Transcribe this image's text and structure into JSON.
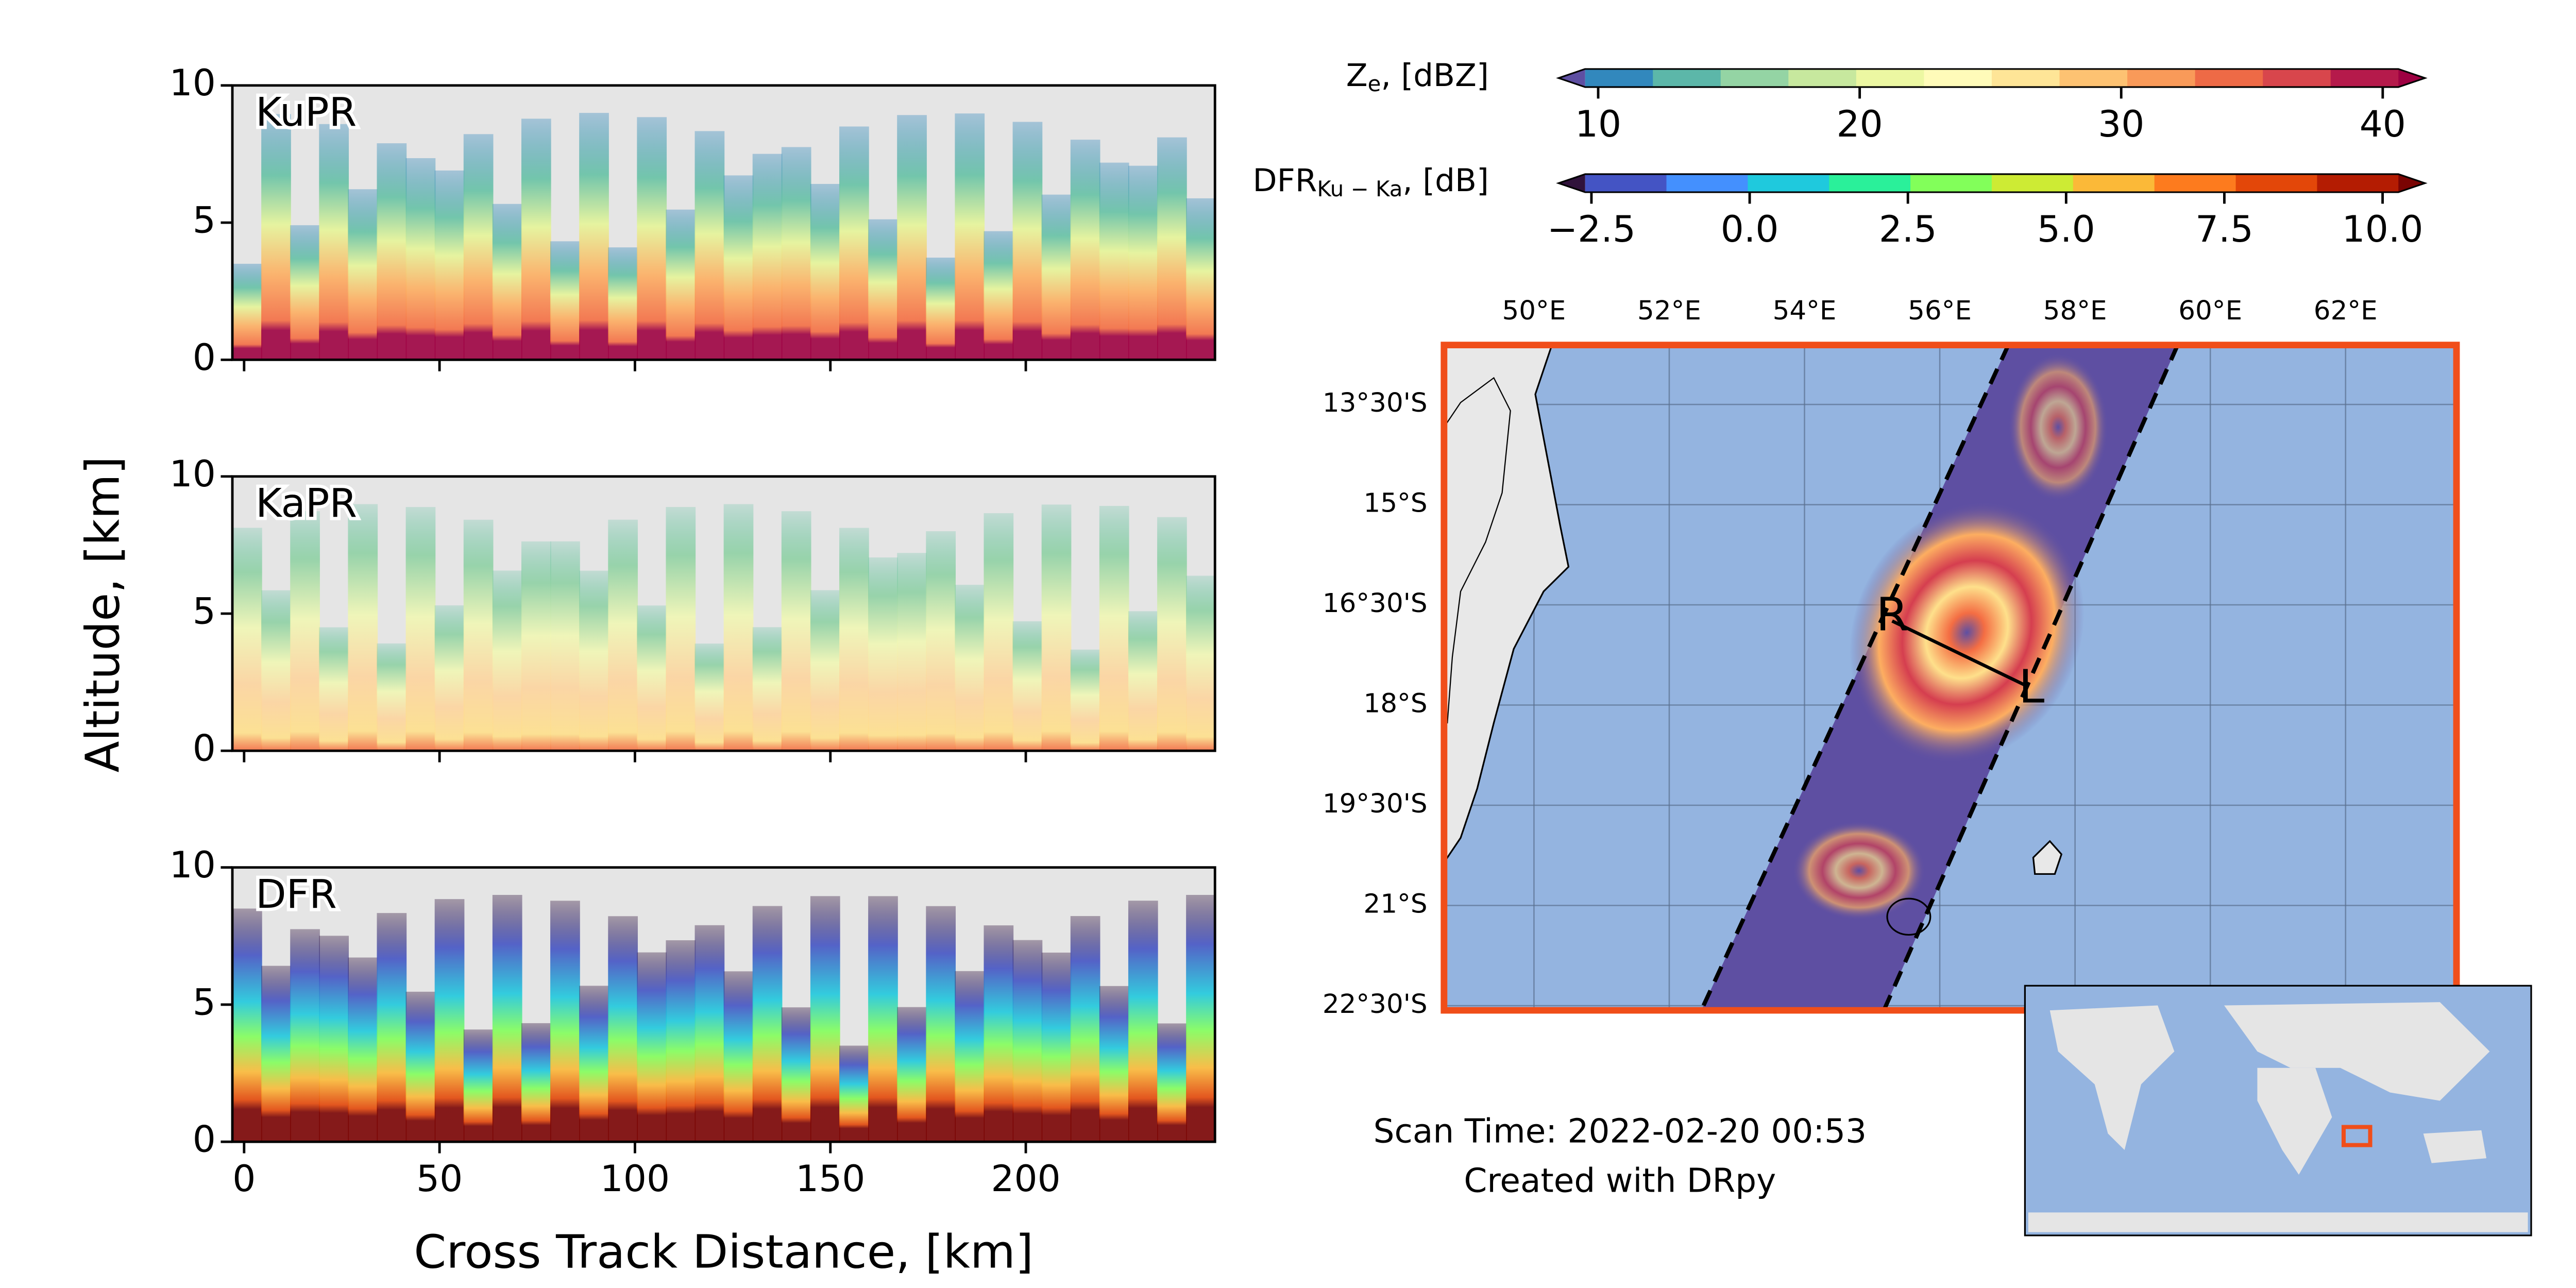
{
  "panels": [
    {
      "label": "KuPR"
    },
    {
      "label": "KaPR"
    },
    {
      "label": "DFR"
    }
  ],
  "y_axis": {
    "label": "Altitude, [km]",
    "lim": [
      0,
      10
    ],
    "ticks": [
      0,
      5,
      10
    ]
  },
  "x_axis": {
    "label": "Cross Track Distance, [km]",
    "lim": [
      -3,
      248.4
    ],
    "ticks": [
      0,
      50,
      100,
      150,
      200
    ]
  },
  "colorbars": [
    {
      "label_main": "Z",
      "label_sub": "e",
      "label_unit": ", [dBZ]",
      "lim": [
        9.5,
        40.6
      ],
      "ticks": [
        10,
        20,
        30,
        40
      ],
      "under": "#5e4fa2",
      "over": "#9e0142",
      "colors": [
        "#3288bd",
        "#5cb7a9",
        "#94d4a4",
        "#c7e89e",
        "#ecf7a2",
        "#fffbb9",
        "#fee597",
        "#fdc272",
        "#f99a59",
        "#ee6a46",
        "#d8464c",
        "#b51a4b"
      ]
    },
    {
      "label_main": "DFR",
      "label_sub": "Ku − Ka",
      "label_unit": ", [dB]",
      "lim": [
        -2.6,
        10.25
      ],
      "ticks": [
        {
          "value": -2.5,
          "label": "−2.5"
        },
        {
          "value": 0,
          "label": "0.0"
        },
        {
          "value": 2.5,
          "label": "2.5"
        },
        {
          "value": 5,
          "label": "5.0"
        },
        {
          "value": 7.5,
          "label": "7.5"
        },
        {
          "value": 10,
          "label": "10.0"
        }
      ],
      "under": "#30123b",
      "over": "#7a0403",
      "colors": [
        "#4454c4",
        "#4490fe",
        "#1fc9dd",
        "#2af09a",
        "#82ff5a",
        "#cdeb34",
        "#fbb938",
        "#fd7b1e",
        "#e34709",
        "#b41c02"
      ]
    }
  ],
  "map": {
    "xlim": [
      48.67,
      63.64
    ],
    "ylim": [
      -12.61,
      -22.57
    ],
    "xticks": [
      {
        "value": 50,
        "label": "50°E"
      },
      {
        "value": 52,
        "label": "52°E"
      },
      {
        "value": 54,
        "label": "54°E"
      },
      {
        "value": 56,
        "label": "56°E"
      },
      {
        "value": 58,
        "label": "58°E"
      },
      {
        "value": 60,
        "label": "60°E"
      },
      {
        "value": 62,
        "label": "62°E"
      }
    ],
    "yticks": [
      {
        "value": -13.5,
        "label": "13°30'S"
      },
      {
        "value": -15,
        "label": "15°S"
      },
      {
        "value": -16.5,
        "label": "16°30'S"
      },
      {
        "value": -18,
        "label": "18°S"
      },
      {
        "value": -19.5,
        "label": "19°30'S"
      },
      {
        "value": -21,
        "label": "21°S"
      },
      {
        "value": -22.5,
        "label": "22°30'S"
      }
    ],
    "start_label": "R",
    "end_label": "L"
  },
  "scan_time": "Scan Time: 2022-02-20 00:53",
  "credit": "Created with DRpy"
}
